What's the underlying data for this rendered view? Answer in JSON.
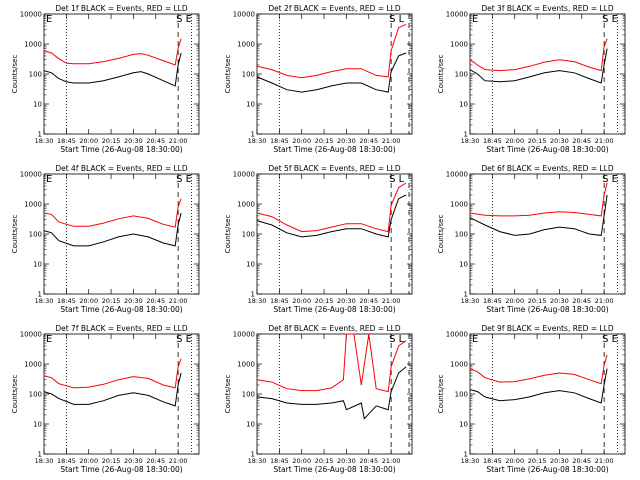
{
  "chart_data": {
    "type": "line",
    "yscale": "log",
    "ylim": [
      1,
      10000
    ],
    "yticks": [
      1,
      10,
      100,
      1000,
      10000
    ],
    "ytick_labels": [
      "1",
      "10",
      "100",
      "1000",
      "10000"
    ],
    "ylabel": "Counts/sec",
    "xlabel": "Start Time (26-Aug-08 18:30:00)",
    "xtick_labels": [
      "18:30",
      "18:45",
      "20:00",
      "20:15",
      "20:30",
      "20:45",
      "21:00"
    ],
    "markers": {
      "S": "S",
      "E": "E",
      "L": "L"
    },
    "colors": {
      "events": "#000000",
      "lld": "#ff0000"
    },
    "panels": [
      {
        "title": "Det 1f BLACK = Events, RED = LLD",
        "top_letters": "E",
        "right_letters": "S E",
        "events": [
          [
            0,
            130
          ],
          [
            0.5,
            110
          ],
          [
            1,
            70
          ],
          [
            1.5,
            55
          ],
          [
            2,
            50
          ],
          [
            3,
            50
          ],
          [
            4,
            60
          ],
          [
            5,
            80
          ],
          [
            6,
            110
          ],
          [
            6.5,
            120
          ],
          [
            7,
            100
          ],
          [
            8,
            60
          ],
          [
            8.8,
            40
          ],
          [
            9,
            200
          ],
          [
            9.2,
            500
          ]
        ],
        "lld": [
          [
            0,
            600
          ],
          [
            0.5,
            500
          ],
          [
            1,
            320
          ],
          [
            1.5,
            230
          ],
          [
            2,
            220
          ],
          [
            3,
            220
          ],
          [
            4,
            260
          ],
          [
            5,
            330
          ],
          [
            6,
            450
          ],
          [
            6.5,
            480
          ],
          [
            7,
            420
          ],
          [
            8,
            280
          ],
          [
            8.8,
            200
          ],
          [
            9,
            700
          ],
          [
            9.2,
            1500
          ]
        ]
      },
      {
        "title": "Det 2f BLACK = Events, RED = LLD",
        "top_letters": "",
        "right_letters": "S L",
        "events": [
          [
            0,
            80
          ],
          [
            1,
            50
          ],
          [
            2,
            30
          ],
          [
            3,
            25
          ],
          [
            4,
            30
          ],
          [
            5,
            40
          ],
          [
            6,
            50
          ],
          [
            7,
            50
          ],
          [
            8,
            30
          ],
          [
            8.8,
            25
          ],
          [
            9,
            120
          ],
          [
            9.5,
            400
          ],
          [
            10,
            500
          ]
        ],
        "lld": [
          [
            0,
            180
          ],
          [
            1,
            140
          ],
          [
            2,
            90
          ],
          [
            3,
            75
          ],
          [
            4,
            90
          ],
          [
            5,
            120
          ],
          [
            6,
            150
          ],
          [
            7,
            150
          ],
          [
            8,
            90
          ],
          [
            8.8,
            80
          ],
          [
            9,
            600
          ],
          [
            9.5,
            3500
          ],
          [
            10,
            4500
          ]
        ]
      },
      {
        "title": "Det 3f BLACK = Events, RED = LLD",
        "top_letters": "E",
        "right_letters": "S E",
        "events": [
          [
            0,
            140
          ],
          [
            0.5,
            100
          ],
          [
            1,
            60
          ],
          [
            2,
            55
          ],
          [
            3,
            60
          ],
          [
            4,
            80
          ],
          [
            5,
            110
          ],
          [
            6,
            130
          ],
          [
            7,
            110
          ],
          [
            8,
            70
          ],
          [
            8.8,
            50
          ],
          [
            9,
            200
          ],
          [
            9.2,
            700
          ]
        ],
        "lld": [
          [
            0,
            300
          ],
          [
            0.5,
            200
          ],
          [
            1,
            140
          ],
          [
            2,
            130
          ],
          [
            3,
            140
          ],
          [
            4,
            180
          ],
          [
            5,
            250
          ],
          [
            6,
            300
          ],
          [
            7,
            260
          ],
          [
            8,
            170
          ],
          [
            8.8,
            130
          ],
          [
            9,
            800
          ],
          [
            9.2,
            1500
          ]
        ]
      },
      {
        "title": "Det 4f BLACK = Events, RED = LLD",
        "top_letters": "E",
        "right_letters": "S E",
        "events": [
          [
            0,
            130
          ],
          [
            0.5,
            110
          ],
          [
            1,
            60
          ],
          [
            2,
            40
          ],
          [
            3,
            40
          ],
          [
            4,
            55
          ],
          [
            5,
            80
          ],
          [
            6,
            100
          ],
          [
            7,
            80
          ],
          [
            8,
            50
          ],
          [
            8.8,
            40
          ],
          [
            9,
            200
          ],
          [
            9.2,
            500
          ]
        ],
        "lld": [
          [
            0,
            500
          ],
          [
            0.5,
            450
          ],
          [
            1,
            250
          ],
          [
            2,
            180
          ],
          [
            3,
            180
          ],
          [
            4,
            230
          ],
          [
            5,
            320
          ],
          [
            6,
            400
          ],
          [
            7,
            330
          ],
          [
            8,
            210
          ],
          [
            8.8,
            170
          ],
          [
            9,
            800
          ],
          [
            9.2,
            1500
          ]
        ]
      },
      {
        "title": "Det 5f BLACK = Events, RED = LLD",
        "top_letters": "",
        "right_letters": "S L",
        "events": [
          [
            0,
            280
          ],
          [
            1,
            200
          ],
          [
            2,
            110
          ],
          [
            3,
            80
          ],
          [
            4,
            90
          ],
          [
            5,
            120
          ],
          [
            6,
            150
          ],
          [
            7,
            150
          ],
          [
            8,
            100
          ],
          [
            8.8,
            80
          ],
          [
            9,
            300
          ],
          [
            9.5,
            1500
          ],
          [
            10,
            2000
          ]
        ],
        "lld": [
          [
            0,
            500
          ],
          [
            1,
            380
          ],
          [
            2,
            200
          ],
          [
            3,
            120
          ],
          [
            4,
            130
          ],
          [
            5,
            170
          ],
          [
            6,
            220
          ],
          [
            7,
            220
          ],
          [
            8,
            150
          ],
          [
            8.8,
            120
          ],
          [
            9,
            900
          ],
          [
            9.5,
            3500
          ],
          [
            10,
            5000
          ]
        ]
      },
      {
        "title": "Det 6f BLACK = Events, RED = LLD",
        "top_letters": "",
        "right_letters": "S E",
        "events": [
          [
            0,
            350
          ],
          [
            1,
            200
          ],
          [
            2,
            120
          ],
          [
            3,
            90
          ],
          [
            4,
            100
          ],
          [
            5,
            140
          ],
          [
            6,
            170
          ],
          [
            7,
            150
          ],
          [
            8,
            100
          ],
          [
            8.8,
            90
          ],
          [
            9,
            400
          ],
          [
            9.2,
            2000
          ]
        ],
        "lld": [
          [
            0,
            500
          ],
          [
            1,
            420
          ],
          [
            2,
            400
          ],
          [
            3,
            400
          ],
          [
            4,
            420
          ],
          [
            5,
            500
          ],
          [
            6,
            550
          ],
          [
            7,
            520
          ],
          [
            8,
            450
          ],
          [
            8.8,
            400
          ],
          [
            9,
            2000
          ],
          [
            9.2,
            5000
          ]
        ]
      },
      {
        "title": "Det 7f BLACK = Events, RED = LLD",
        "top_letters": "E",
        "right_letters": "S E",
        "events": [
          [
            0,
            120
          ],
          [
            0.5,
            100
          ],
          [
            1,
            70
          ],
          [
            2,
            45
          ],
          [
            3,
            45
          ],
          [
            4,
            60
          ],
          [
            5,
            90
          ],
          [
            6,
            110
          ],
          [
            7,
            90
          ],
          [
            8,
            55
          ],
          [
            8.8,
            40
          ],
          [
            9,
            200
          ],
          [
            9.2,
            500
          ]
        ],
        "lld": [
          [
            0,
            400
          ],
          [
            0.5,
            350
          ],
          [
            1,
            220
          ],
          [
            2,
            160
          ],
          [
            3,
            170
          ],
          [
            4,
            210
          ],
          [
            5,
            300
          ],
          [
            6,
            380
          ],
          [
            7,
            330
          ],
          [
            8,
            200
          ],
          [
            8.8,
            160
          ],
          [
            9,
            800
          ],
          [
            9.2,
            1500
          ]
        ]
      },
      {
        "title": "Det 8f BLACK = Events, RED = LLD",
        "top_letters": "",
        "right_letters": "S L",
        "events": [
          [
            0,
            80
          ],
          [
            1,
            70
          ],
          [
            2,
            50
          ],
          [
            3,
            45
          ],
          [
            4,
            45
          ],
          [
            5,
            50
          ],
          [
            5.8,
            60
          ],
          [
            6,
            30
          ],
          [
            7,
            50
          ],
          [
            7.2,
            15
          ],
          [
            8,
            40
          ],
          [
            8.8,
            30
          ],
          [
            9,
            120
          ],
          [
            9.5,
            500
          ],
          [
            10,
            800
          ]
        ],
        "lld": [
          [
            0,
            300
          ],
          [
            1,
            250
          ],
          [
            2,
            150
          ],
          [
            3,
            130
          ],
          [
            4,
            130
          ],
          [
            5,
            160
          ],
          [
            5.8,
            300
          ],
          [
            6,
            10000
          ],
          [
            6.5,
            10000
          ],
          [
            7,
            200
          ],
          [
            7.5,
            10000
          ],
          [
            8,
            150
          ],
          [
            8.8,
            120
          ],
          [
            9,
            800
          ],
          [
            9.5,
            4000
          ],
          [
            10,
            6000
          ]
        ]
      },
      {
        "title": "Det 9f BLACK = Events, RED = LLD",
        "top_letters": "E",
        "right_letters": "S E",
        "events": [
          [
            0,
            140
          ],
          [
            0.5,
            120
          ],
          [
            1,
            80
          ],
          [
            2,
            60
          ],
          [
            3,
            65
          ],
          [
            4,
            80
          ],
          [
            5,
            110
          ],
          [
            6,
            130
          ],
          [
            7,
            110
          ],
          [
            8,
            70
          ],
          [
            8.8,
            50
          ],
          [
            9,
            200
          ],
          [
            9.2,
            700
          ]
        ],
        "lld": [
          [
            0,
            700
          ],
          [
            0.5,
            550
          ],
          [
            1,
            350
          ],
          [
            2,
            250
          ],
          [
            3,
            260
          ],
          [
            4,
            320
          ],
          [
            5,
            420
          ],
          [
            6,
            500
          ],
          [
            7,
            450
          ],
          [
            8,
            300
          ],
          [
            8.8,
            220
          ],
          [
            9,
            900
          ],
          [
            9.2,
            2000
          ]
        ]
      }
    ]
  }
}
